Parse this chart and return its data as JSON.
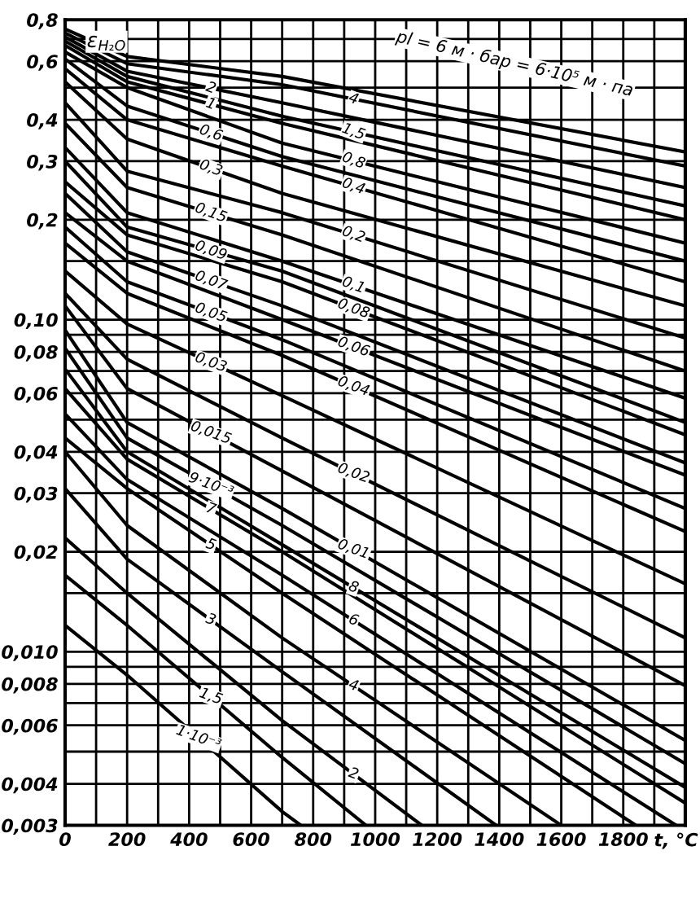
{
  "chart_data": {
    "type": "line",
    "ylabel": "ε$_{H₂O}$",
    "xlabel": "t, °C",
    "log": "y",
    "xlim": [
      0,
      2000
    ],
    "ylim": [
      0.003,
      0.8
    ],
    "xticks": [
      0,
      {
        "value": 100,
        "label": null
      },
      200,
      {
        "value": 300,
        "label": null
      },
      400,
      {
        "value": 500,
        "label": null
      },
      600,
      {
        "value": 700,
        "label": null
      },
      800,
      {
        "value": 900,
        "label": null
      },
      1000,
      {
        "value": 1100,
        "label": null
      },
      1200,
      {
        "value": 1300,
        "label": null
      },
      1400,
      {
        "value": 1500,
        "label": null
      },
      1600,
      {
        "value": 1700,
        "label": null
      },
      1800,
      {
        "value": 1900,
        "label": null
      }
    ],
    "yticks": [
      {
        "value": 0.8,
        "label": "0,8"
      },
      {
        "value": 0.7,
        "label": null
      },
      {
        "value": 0.6,
        "label": "0,6"
      },
      {
        "value": 0.5,
        "label": null
      },
      {
        "value": 0.4,
        "label": "0,4"
      },
      {
        "value": 0.3,
        "label": "0,3"
      },
      {
        "value": 0.2,
        "label": "0,2"
      },
      {
        "value": 0.15,
        "label": null
      },
      {
        "value": 0.1,
        "label": "0,10"
      },
      {
        "value": 0.09,
        "label": null
      },
      {
        "value": 0.08,
        "label": "0,08"
      },
      {
        "value": 0.07,
        "label": null
      },
      {
        "value": 0.06,
        "label": "0,06"
      },
      {
        "value": 0.05,
        "label": null
      },
      {
        "value": 0.04,
        "label": "0,04"
      },
      {
        "value": 0.03,
        "label": "0,03"
      },
      {
        "value": 0.02,
        "label": "0,02"
      },
      {
        "value": 0.015,
        "label": null
      },
      {
        "value": 0.01,
        "label": "0,010"
      },
      {
        "value": 0.009,
        "label": null
      },
      {
        "value": 0.008,
        "label": "0,008"
      },
      {
        "value": 0.007,
        "label": null
      },
      {
        "value": 0.006,
        "label": "0,006"
      },
      {
        "value": 0.005,
        "label": null
      },
      {
        "value": 0.004,
        "label": "0,004"
      },
      {
        "value": 0.003,
        "label": "0,003"
      }
    ],
    "grid": true,
    "legend": false,
    "marker": "none",
    "line_style": "solid",
    "series": [
      {
        "name": "pl = 6 м · бар = 6·10⁵ м · па",
        "color": "#000000",
        "x": [
          0,
          200,
          700,
          2000
        ],
        "values": [
          0.75,
          0.62,
          0.54,
          0.32
        ]
      },
      {
        "name": "4",
        "color": "#000000",
        "x": [
          0,
          200,
          700,
          2000
        ],
        "values": [
          0.73,
          0.59,
          0.51,
          0.29
        ]
      },
      {
        "name": "2",
        "color": "#000000",
        "x": [
          0,
          200,
          700,
          2000
        ],
        "values": [
          0.71,
          0.56,
          0.45,
          0.25
        ]
      },
      {
        "name": "1,5",
        "color": "#000000",
        "x": [
          0,
          200,
          700,
          2000
        ],
        "values": [
          0.69,
          0.54,
          0.41,
          0.22
        ]
      },
      {
        "name": "1",
        "color": "#000000",
        "x": [
          0,
          200,
          700,
          2000
        ],
        "values": [
          0.67,
          0.52,
          0.39,
          0.2
        ]
      },
      {
        "name": "0,8",
        "color": "#000000",
        "x": [
          0,
          200,
          700,
          2000
        ],
        "values": [
          0.64,
          0.5,
          0.34,
          0.17
        ]
      },
      {
        "name": "0,6",
        "color": "#000000",
        "x": [
          0,
          200,
          700,
          2000
        ],
        "values": [
          0.61,
          0.44,
          0.31,
          0.15
        ]
      },
      {
        "name": "0,4",
        "color": "#000000",
        "x": [
          0,
          200,
          700,
          2000
        ],
        "values": [
          0.57,
          0.4,
          0.29,
          0.13
        ]
      },
      {
        "name": "0,3",
        "color": "#000000",
        "x": [
          0,
          200,
          700,
          2000
        ],
        "values": [
          0.52,
          0.35,
          0.24,
          0.11
        ]
      },
      {
        "name": "0,2",
        "color": "#000000",
        "x": [
          0,
          200,
          700,
          2000
        ],
        "values": [
          0.45,
          0.28,
          0.21,
          0.088
        ]
      },
      {
        "name": "0,15",
        "color": "#000000",
        "x": [
          0,
          200,
          700,
          2000
        ],
        "values": [
          0.39,
          0.25,
          0.18,
          0.07
        ]
      },
      {
        "name": "0,1",
        "color": "#000000",
        "x": [
          0,
          200,
          700,
          2000
        ],
        "values": [
          0.33,
          0.21,
          0.15,
          0.058
        ]
      },
      {
        "name": "0,09",
        "color": "#000000",
        "x": [
          0,
          200,
          700,
          2000
        ],
        "values": [
          0.3,
          0.19,
          0.14,
          0.049
        ]
      },
      {
        "name": "0,08",
        "color": "#000000",
        "x": [
          0,
          200,
          700,
          2000
        ],
        "values": [
          0.26,
          0.18,
          0.13,
          0.045
        ]
      },
      {
        "name": "0,07",
        "color": "#000000",
        "x": [
          0,
          200,
          700,
          2000
        ],
        "values": [
          0.24,
          0.16,
          0.11,
          0.037
        ]
      },
      {
        "name": "0,06",
        "color": "#000000",
        "x": [
          0,
          200,
          700,
          2000
        ],
        "values": [
          0.21,
          0.15,
          0.1,
          0.034
        ]
      },
      {
        "name": "0,05",
        "color": "#000000",
        "x": [
          0,
          200,
          700,
          2000
        ],
        "values": [
          0.19,
          0.13,
          0.087,
          0.027
        ]
      },
      {
        "name": "0,04",
        "color": "#000000",
        "x": [
          0,
          200,
          700,
          2000
        ],
        "values": [
          0.17,
          0.12,
          0.078,
          0.023
        ]
      },
      {
        "name": "0,03",
        "color": "#000000",
        "x": [
          0,
          200,
          700,
          2000
        ],
        "values": [
          0.14,
          0.097,
          0.059,
          0.016
        ]
      },
      {
        "name": "0,02",
        "color": "#000000",
        "x": [
          0,
          200,
          700,
          2000
        ],
        "values": [
          0.12,
          0.076,
          0.044,
          0.011
        ]
      },
      {
        "name": "0,015",
        "color": "#000000",
        "x": [
          0,
          200,
          700,
          2000
        ],
        "values": [
          0.11,
          0.062,
          0.035,
          0.0079
        ]
      },
      {
        "name": "0,01",
        "color": "#000000",
        "x": [
          0,
          200,
          700,
          2000
        ],
        "values": [
          0.093,
          0.049,
          0.027,
          0.0054
        ]
      },
      {
        "name": "9·10⁻³",
        "color": "#000000",
        "x": [
          0,
          200,
          700,
          2000
        ],
        "values": [
          0.082,
          0.044,
          0.024,
          0.0046
        ]
      },
      {
        "name": "8",
        "color": "#000000",
        "x": [
          0,
          200,
          700,
          2000
        ],
        "values": [
          0.071,
          0.04,
          0.021,
          0.0039
        ]
      },
      {
        "name": "7",
        "color": "#000000",
        "x": [
          0,
          200,
          700,
          2000
        ],
        "values": [
          0.062,
          0.038,
          0.02,
          0.0035
        ]
      },
      {
        "name": "6",
        "color": "#000000",
        "x": [
          0,
          200,
          700,
          1970
        ],
        "values": [
          0.052,
          0.033,
          0.017,
          0.003
        ]
      },
      {
        "name": "5",
        "color": "#000000",
        "x": [
          0,
          200,
          700,
          1840
        ],
        "values": [
          0.044,
          0.031,
          0.015,
          0.003
        ]
      },
      {
        "name": "4",
        "color": "#000000",
        "x": [
          0,
          200,
          700,
          1600
        ],
        "values": [
          0.04,
          0.024,
          0.011,
          0.003
        ]
      },
      {
        "name": "3",
        "color": "#000000",
        "x": [
          0,
          200,
          700,
          1390
        ],
        "values": [
          0.031,
          0.019,
          0.0087,
          0.003
        ]
      },
      {
        "name": "2",
        "color": "#000000",
        "x": [
          0,
          200,
          700,
          1150
        ],
        "values": [
          0.022,
          0.015,
          0.0062,
          0.003
        ]
      },
      {
        "name": "1,5",
        "color": "#000000",
        "x": [
          0,
          200,
          700,
          970
        ],
        "values": [
          0.017,
          0.012,
          0.0048,
          0.003
        ]
      },
      {
        "name": "1·10⁻³",
        "color": "#000000",
        "x": [
          0,
          200,
          700,
          760
        ],
        "values": [
          0.012,
          0.0085,
          0.0033,
          0.003
        ]
      }
    ]
  }
}
